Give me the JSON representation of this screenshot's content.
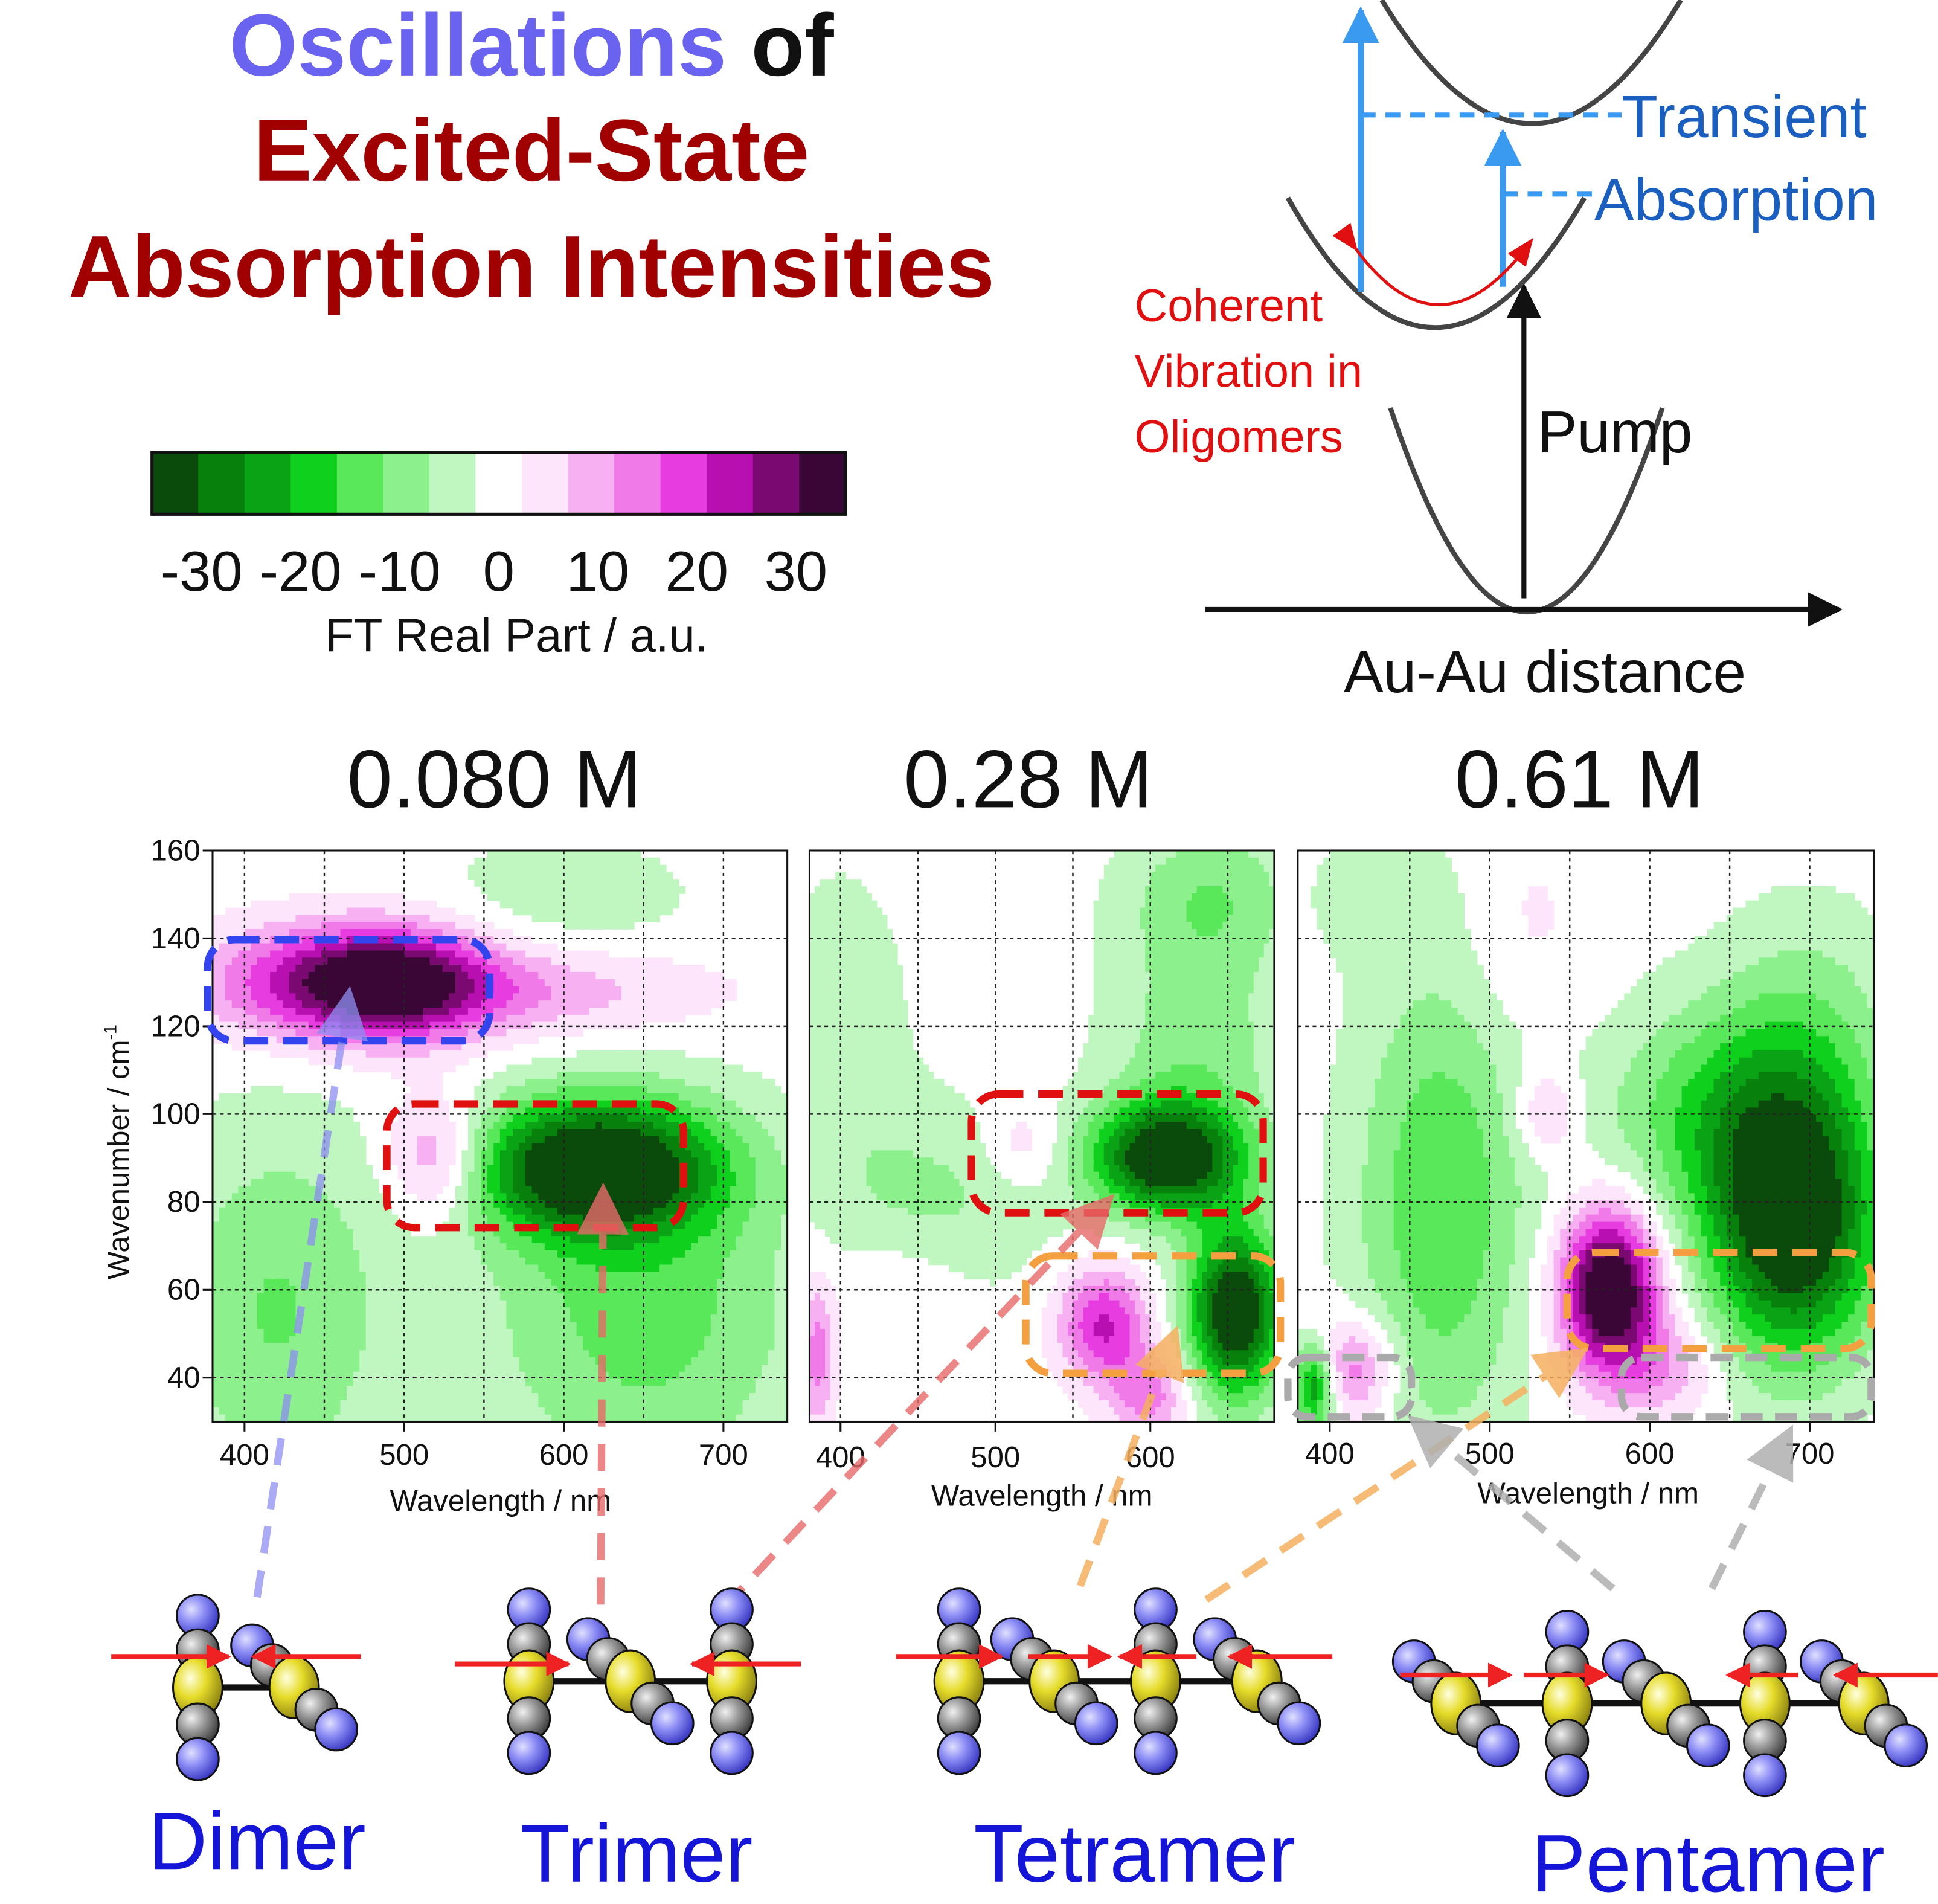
{
  "title": {
    "word_oscillations": "Oscillations",
    "word_of": "of",
    "line2": "Excited-State",
    "line3": "Absorption Intensities",
    "colors": {
      "oscillations": "#6a63f0",
      "of": "#111111",
      "excited": "#a00000"
    }
  },
  "colorbar": {
    "ticks": [
      "-30",
      "-20",
      "-10",
      "0",
      "10",
      "20",
      "30"
    ],
    "label": "FT Real Part / a.u.",
    "colors": [
      "#0a4a0a",
      "#08800c",
      "#0aa316",
      "#10d01e",
      "#58e85a",
      "#8cf08c",
      "#c0f7c0",
      "#ffffff",
      "#fde6fb",
      "#f7b0f2",
      "#f07ae8",
      "#e63ce0",
      "#b810b0",
      "#7a0a72",
      "#3a0636"
    ]
  },
  "scheme": {
    "transient": "Transient",
    "absorption": "Absorption",
    "coherent": [
      "Coherent",
      "Vibration in",
      "Oligomers"
    ],
    "pump": "Pump",
    "xaxis": "Au-Au distance",
    "colors": {
      "arrow_blue": "#3a9af0",
      "text_blue": "#1a5fbf",
      "red": "#e01010"
    }
  },
  "panels": [
    {
      "title": "0.080 M"
    },
    {
      "title": "0.28 M"
    },
    {
      "title": "0.61 M"
    }
  ],
  "axes": {
    "ylabel": "Wavenumber / cm",
    "ylabel_sup": "-1",
    "xlabel": "Wavelength / nm",
    "yticks": [
      "40",
      "60",
      "80",
      "100",
      "120",
      "140",
      "160"
    ],
    "xticks": [
      "400",
      "500",
      "600",
      "700"
    ]
  },
  "oligomers": [
    {
      "label": "Dimer"
    },
    {
      "label": "Trimer"
    },
    {
      "label": "Tetramer"
    },
    {
      "label": "Pentamer"
    }
  ],
  "chart_data": [
    {
      "type": "heatmap",
      "title": "0.080 M",
      "xlabel": "Wavelength / nm",
      "ylabel": "Wavenumber / cm-1",
      "xlim": [
        380,
        740
      ],
      "ylim": [
        30,
        160
      ],
      "features": [
        {
          "x": 490,
          "y": 130,
          "value": 35,
          "sx": 45,
          "sy": 9
        },
        {
          "x": 420,
          "y": 130,
          "value": 12,
          "sx": 45,
          "sy": 9
        },
        {
          "x": 580,
          "y": 128,
          "value": 10,
          "sx": 80,
          "sy": 7
        },
        {
          "x": 520,
          "y": 90,
          "value": 16,
          "sx": 22,
          "sy": 10
        },
        {
          "x": 620,
          "y": 88,
          "value": -38,
          "sx": 55,
          "sy": 11
        },
        {
          "x": 650,
          "y": 55,
          "value": -14,
          "sx": 70,
          "sy": 28
        },
        {
          "x": 420,
          "y": 55,
          "value": -12,
          "sx": 50,
          "sy": 30
        },
        {
          "x": 600,
          "y": 150,
          "value": -5,
          "sx": 60,
          "sy": 10
        }
      ]
    },
    {
      "type": "heatmap",
      "title": "0.28 M",
      "xlabel": "Wavelength / nm",
      "xlim": [
        380,
        680
      ],
      "ylim": [
        30,
        160
      ],
      "features": [
        {
          "x": 610,
          "y": 90,
          "value": -36,
          "sx": 35,
          "sy": 9
        },
        {
          "x": 655,
          "y": 55,
          "value": -38,
          "sx": 22,
          "sy": 14
        },
        {
          "x": 630,
          "y": 115,
          "value": -10,
          "sx": 40,
          "sy": 20
        },
        {
          "x": 570,
          "y": 52,
          "value": 22,
          "sx": 20,
          "sy": 9
        },
        {
          "x": 600,
          "y": 36,
          "value": 14,
          "sx": 18,
          "sy": 7
        },
        {
          "x": 518,
          "y": 93,
          "value": 7,
          "sx": 18,
          "sy": 7
        },
        {
          "x": 460,
          "y": 80,
          "value": -8,
          "sx": 50,
          "sy": 16
        },
        {
          "x": 400,
          "y": 120,
          "value": -6,
          "sx": 30,
          "sy": 25
        },
        {
          "x": 385,
          "y": 45,
          "value": 14,
          "sx": 8,
          "sy": 12
        },
        {
          "x": 440,
          "y": 60,
          "value": 5,
          "sx": 30,
          "sy": 10
        },
        {
          "x": 640,
          "y": 150,
          "value": -10,
          "sx": 40,
          "sy": 12
        }
      ]
    },
    {
      "type": "heatmap",
      "title": "0.61 M",
      "xlabel": "Wavelength / nm",
      "xlim": [
        380,
        740
      ],
      "ylim": [
        30,
        160
      ],
      "features": [
        {
          "x": 575,
          "y": 60,
          "value": 40,
          "sx": 22,
          "sy": 13
        },
        {
          "x": 610,
          "y": 42,
          "value": 10,
          "sx": 25,
          "sy": 8
        },
        {
          "x": 690,
          "y": 75,
          "value": -38,
          "sx": 38,
          "sy": 22
        },
        {
          "x": 640,
          "y": 100,
          "value": -14,
          "sx": 50,
          "sy": 18
        },
        {
          "x": 700,
          "y": 120,
          "value": -8,
          "sx": 40,
          "sy": 20
        },
        {
          "x": 470,
          "y": 80,
          "value": -16,
          "sx": 38,
          "sy": 38
        },
        {
          "x": 415,
          "y": 42,
          "value": 16,
          "sx": 18,
          "sy": 8
        },
        {
          "x": 390,
          "y": 38,
          "value": -26,
          "sx": 9,
          "sy": 7
        },
        {
          "x": 535,
          "y": 100,
          "value": 10,
          "sx": 14,
          "sy": 7
        },
        {
          "x": 520,
          "y": 140,
          "value": 4,
          "sx": 30,
          "sy": 20
        },
        {
          "x": 430,
          "y": 150,
          "value": -5,
          "sx": 30,
          "sy": 10
        }
      ]
    }
  ]
}
